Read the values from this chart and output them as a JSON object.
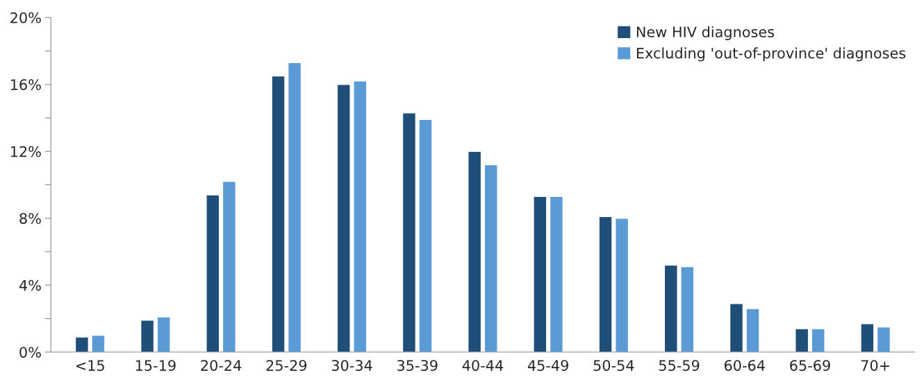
{
  "chart_data": {
    "type": "bar",
    "categories": [
      "<15",
      "15-19",
      "20-24",
      "25-29",
      "30-34",
      "35-39",
      "40-44",
      "45-49",
      "50-54",
      "55-59",
      "60-64",
      "65-69",
      "70+"
    ],
    "series": [
      {
        "name": "New HIV diagnoses",
        "color": "#1f4e79",
        "values": [
          0.9,
          1.9,
          9.4,
          16.5,
          16.0,
          14.3,
          12.0,
          9.3,
          8.1,
          5.2,
          2.9,
          1.4,
          1.7
        ]
      },
      {
        "name": "Excluding 'out-of-province' diagnoses",
        "color": "#5b9bd5",
        "values": [
          1.0,
          2.1,
          10.2,
          17.3,
          16.2,
          13.9,
          11.2,
          9.3,
          8.0,
          5.1,
          2.6,
          1.4,
          1.5
        ]
      }
    ],
    "ylim": [
      0,
      20
    ],
    "yticks": [
      {
        "value": 0,
        "label": "0%"
      },
      {
        "value": 2,
        "label": null
      },
      {
        "value": 4,
        "label": "4%"
      },
      {
        "value": 6,
        "label": null
      },
      {
        "value": 8,
        "label": "8%"
      },
      {
        "value": 10,
        "label": null
      },
      {
        "value": 12,
        "label": "12%"
      },
      {
        "value": 14,
        "label": null
      },
      {
        "value": 16,
        "label": "16%"
      },
      {
        "value": 18,
        "label": null
      },
      {
        "value": 20,
        "label": "20%"
      }
    ],
    "grid": false,
    "legend": "top right"
  }
}
